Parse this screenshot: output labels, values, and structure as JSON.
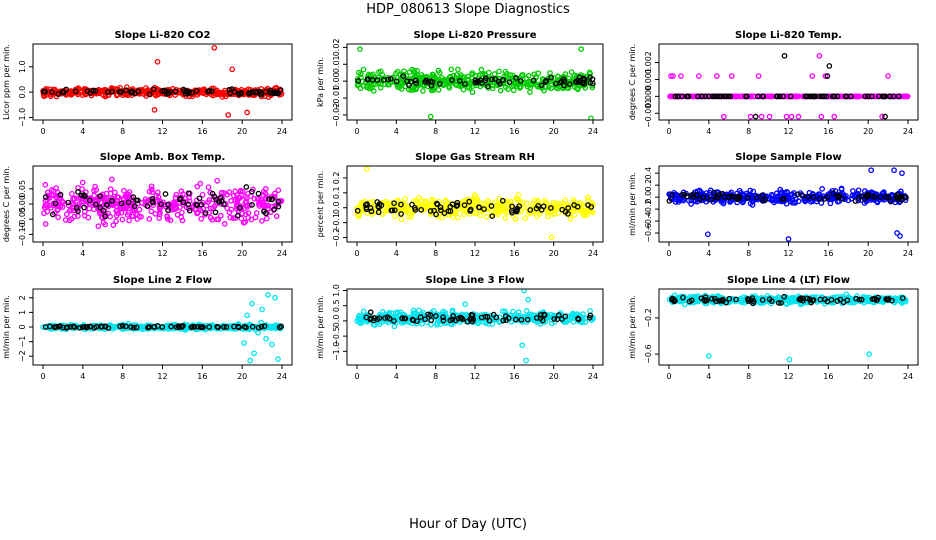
{
  "title": "HDP_080613  Slope Diagnostics",
  "xlabel": "Hour of Day (UTC)",
  "chart_data": [
    {
      "type": "scatter",
      "title": "Slope Li-820 CO2",
      "ylabel": "Licor ppm per min.",
      "color": "#ff0000",
      "xlim": [
        0,
        24
      ],
      "xticks": [
        "0",
        "4",
        "8",
        "12",
        "16",
        "20",
        "24"
      ],
      "ylim": [
        -1.1,
        1.9
      ],
      "yticks": [
        -1.0,
        0.0,
        1.0
      ],
      "yticklabels": [
        "−1.0",
        "0.0",
        "1.0"
      ],
      "spread": 0.3,
      "center": 0.0,
      "black_spread": 0.2,
      "outliers": [
        [
          11.5,
          1.2
        ],
        [
          11.2,
          -0.7
        ],
        [
          17.2,
          1.75
        ],
        [
          18.6,
          -0.9
        ],
        [
          20.5,
          -0.8
        ],
        [
          19.0,
          0.9
        ]
      ]
    },
    {
      "type": "scatter",
      "title": "Slope Li-820 Pressure",
      "ylabel": "kPa per min.",
      "color": "#00cc00",
      "xlim": [
        0,
        24
      ],
      "xticks": [
        "0",
        "4",
        "8",
        "12",
        "16",
        "20",
        "24"
      ],
      "ylim": [
        -0.023,
        0.022
      ],
      "yticks": [
        -0.02,
        -0.01,
        0.0,
        0.01,
        0.02
      ],
      "yticklabels": [
        "−0.02",
        "−0.01",
        "0.00",
        "0.01",
        "0.02"
      ],
      "spread": 0.011,
      "center": 0.0,
      "black_spread": 0.006,
      "outliers": [
        [
          23.8,
          -0.022
        ],
        [
          7.5,
          -0.021
        ],
        [
          0.3,
          0.019
        ],
        [
          22.8,
          0.019
        ]
      ]
    },
    {
      "type": "scatter",
      "title": "Slope Li-820 Temp.",
      "ylabel": "degrees C per min.",
      "color": "#ff00ff",
      "xlim": [
        0,
        24
      ],
      "xticks": [
        "0",
        "4",
        "8",
        "12",
        "16",
        "20",
        "24"
      ],
      "ylim": [
        -0.0014,
        0.0031
      ],
      "yticks": [
        -0.001,
        0.0,
        0.001,
        0.002
      ],
      "yticklabels": [
        "−0.001",
        "0.000",
        "0.001",
        "0.002"
      ],
      "discrete_levels": [
        -0.0012,
        0.0,
        0.0012,
        0.0024
      ],
      "base_level": 0.0,
      "level_points": [
        [
          0.2,
          0.0012
        ],
        [
          0.4,
          0.0012
        ],
        [
          3.0,
          0.0012
        ],
        [
          4.8,
          0.0012
        ],
        [
          6.3,
          0.0012
        ],
        [
          8.2,
          -0.0012
        ],
        [
          9.0,
          0.0012
        ],
        [
          9.3,
          -0.0012
        ],
        [
          10.1,
          -0.0012
        ],
        [
          11.8,
          -0.0012
        ],
        [
          12.3,
          -0.0012
        ],
        [
          13.0,
          -0.0012
        ],
        [
          14.4,
          0.0012
        ],
        [
          15.1,
          0.0024
        ],
        [
          15.3,
          -0.0012
        ],
        [
          15.7,
          0.0012
        ],
        [
          16.6,
          -0.0012
        ],
        [
          21.4,
          -0.0012
        ],
        [
          22.0,
          0.0012
        ],
        [
          5.5,
          -0.0012
        ],
        [
          1.2,
          0.0012
        ],
        [
          15.9,
          0.0012
        ]
      ],
      "black_level_points": [
        [
          11.6,
          0.0024
        ],
        [
          16.1,
          0.0018
        ],
        [
          8.7,
          -0.0012
        ],
        [
          21.7,
          -0.0012
        ],
        [
          15.9,
          0.0012
        ]
      ]
    },
    {
      "type": "scatter",
      "title": "Slope Amb. Box Temp.",
      "ylabel": "degrees C per min.",
      "color": "#ff00ff",
      "xlim": [
        0,
        24
      ],
      "xticks": [
        "0",
        "4",
        "8",
        "12",
        "16",
        "20",
        "24"
      ],
      "ylim": [
        -0.125,
        0.125
      ],
      "yticks": [
        -0.1,
        -0.05,
        0.0,
        0.05
      ],
      "yticklabels": [
        "−0.10",
        "−0.05",
        "0.00",
        "0.05"
      ],
      "spread": 0.11,
      "center": 0.0,
      "black_spread": 0.09,
      "outliers": []
    },
    {
      "type": "scatter",
      "title": "Slope Gas Stream RH",
      "ylabel": "percent per min.",
      "color": "#ffff00",
      "xlim": [
        0,
        24
      ],
      "xticks": [
        "0",
        "4",
        "8",
        "12",
        "16",
        "20",
        "24"
      ],
      "ylim": [
        -0.23,
        0.28
      ],
      "yticks": [
        -0.2,
        -0.1,
        0.0,
        0.1,
        0.2
      ],
      "yticklabels": [
        "−0.2",
        "−0.1",
        "0.0",
        "0.1",
        "0.2"
      ],
      "spread": 0.12,
      "center": 0.0,
      "black_spread": 0.1,
      "outliers": [
        [
          1.0,
          0.26
        ],
        [
          19.8,
          -0.2
        ]
      ]
    },
    {
      "type": "scatter",
      "title": "Slope Sample Flow",
      "ylabel": "ml/min per min.",
      "color": "#0000ff",
      "xlim": [
        0,
        24
      ],
      "xticks": [
        "0",
        "4",
        "8",
        "12",
        "16",
        "20",
        "24"
      ],
      "ylim": [
        -0.75,
        0.52
      ],
      "yticks": [
        -0.6,
        -0.4,
        -0.2,
        0.0,
        0.2,
        0.4
      ],
      "yticklabels": [
        "−0.6",
        "−0.4",
        "−0.2",
        "0.0",
        "0.2",
        "0.4"
      ],
      "spread": 0.2,
      "center": 0.0,
      "black_spread": 0.12,
      "outliers": [
        [
          3.9,
          -0.62
        ],
        [
          12.0,
          -0.7
        ],
        [
          22.9,
          -0.6
        ],
        [
          23.2,
          -0.65
        ],
        [
          20.3,
          0.45
        ],
        [
          22.6,
          0.45
        ],
        [
          23.4,
          0.4
        ]
      ]
    },
    {
      "type": "scatter",
      "title": "Slope Line 2 Flow",
      "ylabel": "ml/min per min.",
      "color": "#00e5ee",
      "xlim": [
        0,
        24
      ],
      "xticks": [
        "0",
        "4",
        "8",
        "12",
        "16",
        "20",
        "24"
      ],
      "ylim": [
        -2.6,
        2.6
      ],
      "yticks": [
        -2,
        -1,
        0,
        1,
        2
      ],
      "yticklabels": [
        "−2",
        "−1",
        "0",
        "1",
        "2"
      ],
      "spread": 0.3,
      "center": 0.0,
      "black_spread": 0.15,
      "outliers": [
        [
          20.2,
          -1.1
        ],
        [
          20.5,
          0.8
        ],
        [
          21.0,
          1.6
        ],
        [
          21.2,
          -1.8
        ],
        [
          21.6,
          -0.4
        ],
        [
          22.0,
          1.2
        ],
        [
          22.6,
          2.2
        ],
        [
          23.0,
          -1.2
        ],
        [
          23.3,
          2.0
        ],
        [
          23.6,
          -2.2
        ],
        [
          20.8,
          -2.3
        ],
        [
          21.9,
          0.3
        ],
        [
          22.4,
          -0.8
        ]
      ]
    },
    {
      "type": "scatter",
      "title": "Slope Line 3 Flow",
      "ylabel": "ml/min per min.",
      "color": "#00e5ee",
      "xlim": [
        0,
        24
      ],
      "xticks": [
        "0",
        "4",
        "8",
        "12",
        "16",
        "20",
        "24"
      ],
      "ylim": [
        -1.45,
        1.05
      ],
      "yticks": [
        -1.0,
        -0.5,
        0.0,
        0.5,
        1.0
      ],
      "yticklabels": [
        "−1.0",
        "−0.5",
        "0.0",
        "0.5",
        "1.0"
      ],
      "spread": 0.4,
      "center": 0.1,
      "black_spread": 0.25,
      "outliers": [
        [
          17.0,
          1.0
        ],
        [
          17.2,
          -1.3
        ],
        [
          16.8,
          -0.8
        ],
        [
          17.4,
          0.7
        ],
        [
          11.0,
          0.55
        ]
      ]
    },
    {
      "type": "scatter",
      "title": "Slope Line 4 (LT) Flow",
      "ylabel": "ml/min per min.",
      "color": "#00e5ee",
      "xlim": [
        0,
        24
      ],
      "xticks": [
        "0",
        "4",
        "8",
        "12",
        "16",
        "20",
        "24"
      ],
      "ylim": [
        -0.72,
        0.12
      ],
      "yticks": [
        -0.6,
        -0.2
      ],
      "yticklabels": [
        "−0.6",
        "−0.2"
      ],
      "spread": 0.08,
      "center": 0.0,
      "black_spread": 0.06,
      "outliers": [
        [
          4.0,
          -0.62
        ],
        [
          12.1,
          -0.66
        ],
        [
          20.1,
          -0.6
        ]
      ]
    }
  ]
}
